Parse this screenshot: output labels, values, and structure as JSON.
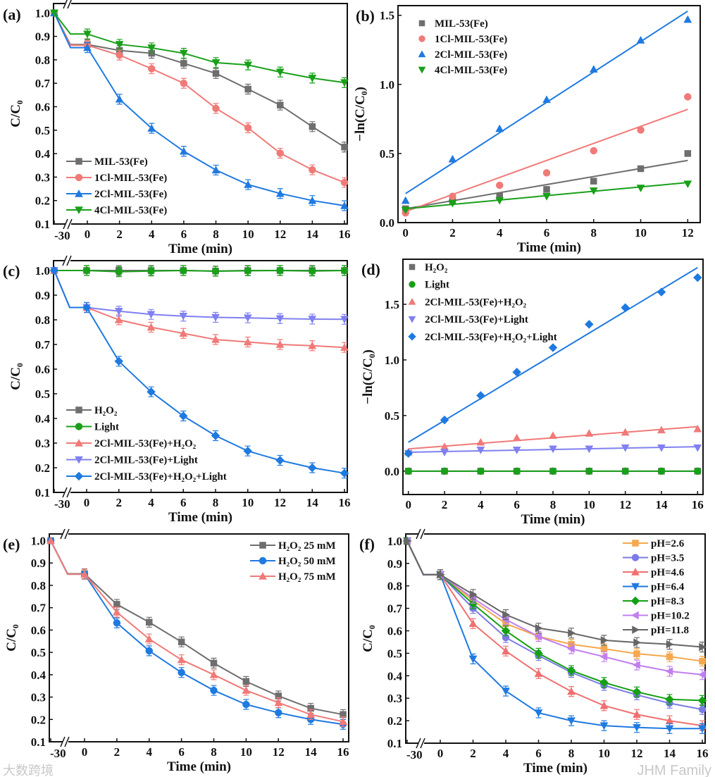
{
  "watermarks": {
    "right": "JHM Family",
    "left": "大数跨境"
  },
  "chart_data": [
    {
      "panel": "(a)",
      "type": "line",
      "xlabel": "Time (min)",
      "ylabel": "C/C₀",
      "x": [
        -30,
        0,
        2,
        4,
        6,
        8,
        10,
        12,
        14,
        16
      ],
      "xticks": [
        "-30",
        "0",
        "2",
        "4",
        "6",
        "8",
        "10",
        "12",
        "14",
        "16"
      ],
      "yticks": [
        "0.1",
        "0.2",
        "0.3",
        "0.4",
        "0.5",
        "0.6",
        "0.7",
        "0.8",
        "0.9",
        "1.0"
      ],
      "ylim": [
        0.1,
        1.04
      ],
      "axis_break": true,
      "error_bars": true,
      "legend": "bottom-left",
      "series": [
        {
          "name": "MIL-53(Fe)",
          "color": "#6e6e6e",
          "marker": "square",
          "values": [
            1.0,
            0.865,
            0.84,
            0.828,
            0.785,
            0.742,
            0.675,
            0.607,
            0.515,
            0.428
          ]
        },
        {
          "name": "1Cl-MIL-53(Fe)",
          "color": "#f07a78",
          "marker": "circle",
          "values": [
            1.0,
            0.862,
            0.82,
            0.762,
            0.7,
            0.593,
            0.51,
            0.402,
            0.331,
            0.277
          ]
        },
        {
          "name": "2Cl-MIL-53(Fe)",
          "color": "#1f7ae0",
          "marker": "triangle-up",
          "values": [
            1.0,
            0.852,
            0.632,
            0.508,
            0.41,
            0.33,
            0.268,
            0.23,
            0.2,
            0.178
          ]
        },
        {
          "name": "4Cl-MIL-53(Fe)",
          "color": "#19a019",
          "marker": "triangle-down",
          "values": [
            1.0,
            0.91,
            0.866,
            0.851,
            0.828,
            0.788,
            0.778,
            0.748,
            0.722,
            0.703
          ]
        }
      ]
    },
    {
      "panel": "(b)",
      "type": "scatter",
      "xlabel": "Time (min)",
      "ylabel": "−ln(C/C₀)",
      "x": [
        0,
        2,
        4,
        6,
        8,
        10,
        12
      ],
      "xticks": [
        "0",
        "2",
        "4",
        "6",
        "8",
        "10",
        "12"
      ],
      "yticks": [
        "0.0",
        "0.5",
        "1.0",
        "1.5"
      ],
      "ytick_values": [
        0,
        0.5,
        1.0,
        1.5
      ],
      "ylim": [
        0,
        1.57
      ],
      "xlim": [
        -0.32,
        12.53
      ],
      "legend": "top-left",
      "series": [
        {
          "name": "MIL-53(Fe)",
          "color": "#6e6e6e",
          "marker": "square",
          "values": [
            0.1,
            0.16,
            0.19,
            0.24,
            0.3,
            0.39,
            0.5
          ],
          "fit": [
            0.1,
            0.45
          ]
        },
        {
          "name": "1Cl-MIL-53(Fe)",
          "color": "#f07a78",
          "marker": "circle",
          "values": [
            0.07,
            0.19,
            0.27,
            0.36,
            0.52,
            0.67,
            0.91
          ],
          "fit": [
            0.08,
            0.82
          ]
        },
        {
          "name": "2Cl-MIL-53(Fe)",
          "color": "#1f7ae0",
          "marker": "triangle-up",
          "values": [
            0.16,
            0.46,
            0.68,
            0.89,
            1.11,
            1.32,
            1.47
          ],
          "fit": [
            0.21,
            1.53
          ]
        },
        {
          "name": "4Cl-MIL-53(Fe)",
          "color": "#19a019",
          "marker": "triangle-down",
          "values": [
            0.09,
            0.14,
            0.16,
            0.19,
            0.23,
            0.25,
            0.28
          ],
          "fit": [
            0.1,
            0.29
          ]
        }
      ]
    },
    {
      "panel": "(c)",
      "type": "line",
      "xlabel": "Time (min)",
      "ylabel": "C/C₀",
      "x": [
        -30,
        0,
        2,
        4,
        6,
        8,
        10,
        12,
        14,
        16
      ],
      "xticks": [
        "-30",
        "0",
        "2",
        "4",
        "6",
        "8",
        "10",
        "12",
        "14",
        "16"
      ],
      "yticks": [
        "0.1",
        "0.2",
        "0.3",
        "0.4",
        "0.5",
        "0.6",
        "0.7",
        "0.8",
        "0.9",
        "1.0"
      ],
      "ylim": [
        0.1,
        1.04
      ],
      "axis_break": true,
      "error_bars": true,
      "legend": "bottom-left",
      "series": [
        {
          "name": "H₂O₂",
          "color": "#6e6e6e",
          "marker": "square",
          "values": [
            1.0,
            1.0,
            1.0,
            1.0,
            1.0,
            0.998,
            1.0,
            1.0,
            1.0,
            1.0
          ]
        },
        {
          "name": "Light",
          "color": "#19a019",
          "marker": "circle",
          "values": [
            1.0,
            1.0,
            0.995,
            0.998,
            1.0,
            0.997,
            0.999,
            1.0,
            0.998,
            1.0
          ]
        },
        {
          "name": "2Cl-MIL-53(Fe)+H₂O₂",
          "color": "#f07a78",
          "marker": "triangle-up",
          "values": [
            1.0,
            0.85,
            0.8,
            0.77,
            0.745,
            0.72,
            0.71,
            0.7,
            0.695,
            0.688
          ]
        },
        {
          "name": "2Cl-MIL-53(Fe)+Light",
          "color": "#8080f0",
          "marker": "triangle-down",
          "values": [
            1.0,
            0.85,
            0.835,
            0.822,
            0.815,
            0.81,
            0.808,
            0.805,
            0.803,
            0.802
          ]
        },
        {
          "name": "2Cl-MIL-53(Fe)+H₂O₂+Light",
          "color": "#1f7ae0",
          "marker": "diamond",
          "values": [
            1.0,
            0.85,
            0.632,
            0.508,
            0.41,
            0.33,
            0.268,
            0.23,
            0.2,
            0.178
          ]
        }
      ]
    },
    {
      "panel": "(d)",
      "type": "scatter",
      "xlabel": "Time (min)",
      "ylabel": "−ln(C/C₀)",
      "x": [
        0,
        2,
        4,
        6,
        8,
        10,
        12,
        14,
        16
      ],
      "xticks": [
        "0",
        "2",
        "4",
        "6",
        "8",
        "10",
        "12",
        "14",
        "16"
      ],
      "yticks": [
        "0.0",
        "0.5",
        "1.0",
        "1.5"
      ],
      "ytick_values": [
        0,
        0.5,
        1.0,
        1.5
      ],
      "ylim": [
        -0.21,
        1.905
      ],
      "xlim": [
        -0.3,
        16.3
      ],
      "legend": "top-left",
      "series": [
        {
          "name": "H₂O₂",
          "color": "#6e6e6e",
          "marker": "square",
          "values": [
            0,
            0,
            0,
            0,
            0,
            0,
            0,
            0,
            0
          ],
          "fit": [
            0,
            0
          ]
        },
        {
          "name": "Light",
          "color": "#19a019",
          "marker": "circle",
          "values": [
            0,
            0,
            0,
            0,
            0,
            0,
            0,
            0,
            0
          ],
          "fit": [
            0,
            0
          ]
        },
        {
          "name": "2Cl-MIL-53(Fe)+H₂O₂",
          "color": "#f07a78",
          "marker": "triangle-up",
          "values": [
            0.17,
            0.22,
            0.26,
            0.3,
            0.32,
            0.34,
            0.35,
            0.37,
            0.38
          ],
          "fit": [
            0.2,
            0.4
          ]
        },
        {
          "name": "2Cl-MIL-53(Fe)+Light",
          "color": "#8080f0",
          "marker": "triangle-down",
          "values": [
            0.16,
            0.17,
            0.19,
            0.19,
            0.2,
            0.2,
            0.21,
            0.21,
            0.21
          ],
          "fit": [
            0.17,
            0.22
          ]
        },
        {
          "name": "2Cl-MIL-53(Fe)+H₂O₂+Light",
          "color": "#1f7ae0",
          "marker": "diamond",
          "values": [
            0.16,
            0.46,
            0.68,
            0.89,
            1.11,
            1.32,
            1.47,
            1.61,
            1.74
          ],
          "fit": [
            0.26,
            1.83
          ]
        }
      ]
    },
    {
      "panel": "(e)",
      "type": "line",
      "xlabel": "Time (min)",
      "ylabel": "C/C₀",
      "x": [
        -30,
        0,
        2,
        4,
        6,
        8,
        10,
        12,
        14,
        16
      ],
      "xticks": [
        "-30",
        "0",
        "2",
        "4",
        "6",
        "8",
        "10",
        "12",
        "14",
        "16"
      ],
      "yticks": [
        "0.1",
        "0.2",
        "0.3",
        "0.4",
        "0.5",
        "0.6",
        "0.7",
        "0.8",
        "0.9",
        "1.0"
      ],
      "ylim": [
        0.1,
        1.03
      ],
      "axis_break": true,
      "error_bars": true,
      "legend": "top-right",
      "series": [
        {
          "name": "H₂O₂ 25 mM",
          "color": "#6e6e6e",
          "marker": "square",
          "values": [
            1.0,
            0.852,
            0.715,
            0.635,
            0.547,
            0.452,
            0.37,
            0.305,
            0.25,
            0.222
          ]
        },
        {
          "name": "H₂O₂ 50 mM",
          "color": "#1f7ae0",
          "marker": "circle",
          "values": [
            1.0,
            0.85,
            0.632,
            0.507,
            0.41,
            0.33,
            0.267,
            0.23,
            0.2,
            0.178
          ]
        },
        {
          "name": "H₂O₂ 75 mM",
          "color": "#f07a78",
          "marker": "triangle-up",
          "values": [
            1.0,
            0.85,
            0.68,
            0.56,
            0.467,
            0.4,
            0.33,
            0.275,
            0.222,
            0.19
          ]
        }
      ]
    },
    {
      "panel": "(f)",
      "type": "line",
      "xlabel": "Time (min)",
      "ylabel": "C/C₀",
      "x": [
        -30,
        0,
        2,
        4,
        6,
        8,
        10,
        12,
        14,
        16
      ],
      "xticks": [
        "-30",
        "0",
        "2",
        "4",
        "6",
        "8",
        "10",
        "12",
        "14",
        "16"
      ],
      "yticks": [
        "0.1",
        "0.2",
        "0.3",
        "0.4",
        "0.5",
        "0.6",
        "0.7",
        "0.8",
        "0.9",
        "1.0"
      ],
      "ylim": [
        0.1,
        1.031
      ],
      "axis_break": true,
      "error_bars": true,
      "legend": "top-right",
      "series": [
        {
          "name": "pH=2.6",
          "color": "#f5a84e",
          "marker": "square",
          "values": [
            1.0,
            0.85,
            0.735,
            0.632,
            0.575,
            0.54,
            0.52,
            0.498,
            0.485,
            0.465
          ]
        },
        {
          "name": "pH=3.5",
          "color": "#7b7be6",
          "marker": "circle",
          "values": [
            1.0,
            0.85,
            0.7,
            0.57,
            0.49,
            0.415,
            0.357,
            0.315,
            0.278,
            0.25
          ]
        },
        {
          "name": "pH=4.6",
          "color": "#f07070",
          "marker": "triangle-up",
          "values": [
            1.0,
            0.85,
            0.632,
            0.51,
            0.41,
            0.33,
            0.267,
            0.228,
            0.2,
            0.178
          ]
        },
        {
          "name": "pH=6.4",
          "color": "#1f7ae0",
          "marker": "triangle-down",
          "values": [
            1.0,
            0.85,
            0.475,
            0.332,
            0.235,
            0.2,
            0.178,
            0.17,
            0.165,
            0.165
          ]
        },
        {
          "name": "pH=8.3",
          "color": "#14a014",
          "marker": "diamond",
          "values": [
            1.0,
            0.85,
            0.72,
            0.6,
            0.5,
            0.423,
            0.37,
            0.328,
            0.295,
            0.29
          ]
        },
        {
          "name": "pH=10.2",
          "color": "#c07ff0",
          "marker": "triangle-left",
          "values": [
            1.0,
            0.85,
            0.745,
            0.65,
            0.575,
            0.52,
            0.485,
            0.448,
            0.42,
            0.405
          ]
        },
        {
          "name": "pH=11.8",
          "color": "#666666",
          "marker": "triangle-right",
          "values": [
            1.0,
            0.85,
            0.762,
            0.672,
            0.612,
            0.59,
            0.558,
            0.548,
            0.54,
            0.528
          ]
        }
      ]
    }
  ]
}
